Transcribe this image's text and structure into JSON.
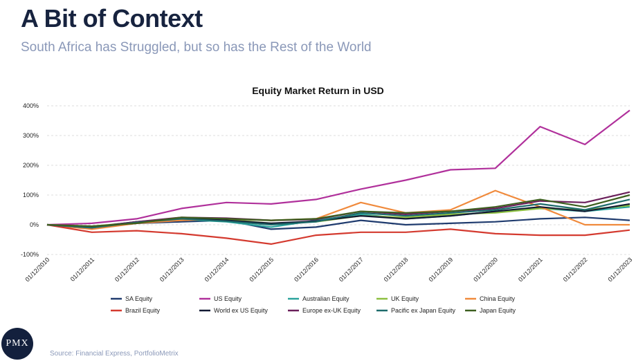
{
  "header": {
    "title": "A Bit of Context",
    "subtitle": "South Africa has Struggled, but so has the Rest of the World"
  },
  "footer": {
    "source": "Source: Financial Express, PortfolioMetrix",
    "logo_text": "PMX"
  },
  "chart_data": {
    "type": "line",
    "title": "Equity Market Return in USD",
    "xlabel": "",
    "ylabel": "",
    "x": [
      "01/12/2010",
      "01/12/2011",
      "01/12/2012",
      "01/12/2013",
      "01/12/2014",
      "01/12/2015",
      "01/12/2016",
      "01/12/2017",
      "01/12/2018",
      "01/12/2019",
      "01/12/2020",
      "01/12/2021",
      "01/12/2022",
      "01/12/2023"
    ],
    "x_tick_labels": [
      "01/12/2010",
      "01/12/2011",
      "01/12/2012",
      "01/12/2013",
      "01/12/2014",
      "01/12/2015",
      "01/12/2016",
      "01/12/2017",
      "01/12/2018",
      "01/12/2019",
      "01/12/2020",
      "01/12/2021",
      "01/12/2022",
      "01/12/2023"
    ],
    "y_ticks": [
      -100,
      0,
      100,
      200,
      300,
      400
    ],
    "y_tick_labels": [
      "-100%",
      "0%",
      "100%",
      "200%",
      "300%",
      "400%"
    ],
    "ylim": [
      -100,
      400
    ],
    "grid": true,
    "legend_position": "bottom",
    "series": [
      {
        "name": "SA Equity",
        "color": "#1f3b6e",
        "values": [
          0,
          -12,
          5,
          10,
          15,
          -15,
          -8,
          15,
          0,
          5,
          10,
          20,
          25,
          15
        ]
      },
      {
        "name": "US Equity",
        "color": "#b0309b",
        "values": [
          0,
          5,
          20,
          55,
          75,
          70,
          85,
          120,
          150,
          185,
          190,
          330,
          270,
          385
        ]
      },
      {
        "name": "Australian Equity",
        "color": "#2aa39c",
        "values": [
          0,
          -8,
          10,
          18,
          10,
          -8,
          15,
          35,
          20,
          30,
          45,
          55,
          45,
          60
        ]
      },
      {
        "name": "UK Equity",
        "color": "#8cbf3f",
        "values": [
          0,
          -5,
          8,
          20,
          18,
          5,
          10,
          30,
          25,
          35,
          40,
          55,
          50,
          65
        ]
      },
      {
        "name": "China Equity",
        "color": "#f08a3c",
        "values": [
          0,
          -15,
          5,
          15,
          20,
          15,
          20,
          75,
          40,
          50,
          115,
          60,
          0,
          0
        ]
      },
      {
        "name": "Brazil Equity",
        "color": "#d43a2f",
        "values": [
          0,
          -25,
          -20,
          -30,
          -45,
          -65,
          -35,
          -25,
          -25,
          -15,
          -30,
          -35,
          -35,
          -18
        ]
      },
      {
        "name": "World ex US Equity",
        "color": "#121a33",
        "values": [
          0,
          -8,
          10,
          22,
          15,
          5,
          12,
          30,
          20,
          30,
          45,
          60,
          45,
          70
        ]
      },
      {
        "name": "Europe ex-UK Equity",
        "color": "#6a1f5a",
        "values": [
          0,
          -10,
          10,
          25,
          22,
          15,
          18,
          45,
          35,
          45,
          55,
          80,
          75,
          110
        ]
      },
      {
        "name": "Pacific ex Japan Equity",
        "color": "#1d6b6b",
        "values": [
          0,
          -10,
          8,
          20,
          12,
          0,
          10,
          40,
          30,
          40,
          50,
          70,
          50,
          85
        ]
      },
      {
        "name": "Japan Equity",
        "color": "#3d5f1f",
        "values": [
          0,
          -5,
          5,
          25,
          20,
          15,
          20,
          45,
          40,
          45,
          60,
          85,
          60,
          100
        ]
      }
    ]
  }
}
